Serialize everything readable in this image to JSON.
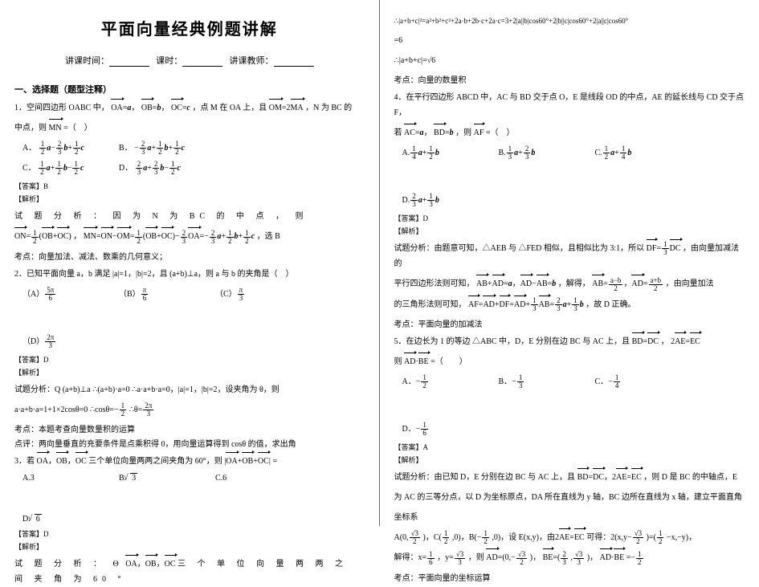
{
  "title": "平面向量经典例题讲解",
  "meta": {
    "t1": "讲课时间：",
    "t2": "课时：",
    "t3": "讲课教师："
  },
  "sec1": "一、选择题（题型注释）",
  "q1": {
    "stem1": "1．空间四边形 OABC 中，",
    "stem2": "，点 M 在 OA 上，且",
    "stem3": "，N 为 BC 的",
    "stem4": "中点，则",
    "stem5": "=（　）",
    "oa": "OA",
    "ob": "OB",
    "oc": "OC",
    "om": "OM",
    "ma": "MA",
    "mn": "MN",
    "optA": "A．",
    "optB": "B．",
    "optC": "C．",
    "optD": "D．",
    "ans": "【答案】B",
    "jx": "【解析】",
    "ana1": "试 题 分 析 ： 因 为 N 为 BC 的 中 点 ， 则",
    "ana2": "，",
    "ana3": "，选 B",
    "kd": "考点：向量加法、减法、数乘的几何意义；"
  },
  "q2": {
    "stem": "2．已知平面向量 a，b 满足 |a|=1，|b|=2，且 (a+b)⊥a，则 a 与 b 的夹角是（　）",
    "A": "（A）",
    "Av": "5π",
    "Ad": "6",
    "B": "（B）",
    "Bv": "π",
    "Bd": "6",
    "C": "（C）",
    "Cv": "π",
    "Cd": "3",
    "D": "（D）",
    "Dv": "2π",
    "Dd": "3",
    "ans": "【答案】D",
    "jx": "【解析】",
    "ana1": "试题分析：Q (a+b)⊥a ∴(a+b)·a=0 ∴a·a+b·a=0，|a|=1，|b|=2，设夹角为 θ，则",
    "ana2": "a·a+b·a=1+1×2cosθ=0 ∴cosθ=−",
    "ana3": "∴θ=",
    "kd": "考点：本题考查向量数量积的运算",
    "dp": "点评：两向量垂直的充要条件是点乘积得 0，用向量运算得到 cosθ 的值，求出角"
  },
  "q3": {
    "stem1": "3．若",
    "stem2": "三个单位向量两两之间夹角为 60°，则",
    "stem3": "=",
    "A": "A.3",
    "B": "B.",
    "Bv": "3",
    "C": "C.6",
    "D": "D.",
    "Dv": "6",
    "ans": "【答案】D",
    "jx": "【解析】",
    "ana": "试 题 分 析 ： Θ",
    "ana2": "三 个 单 位 向 量 两 两 之 间 夹 角 为 60 °"
  },
  "right": {
    "l1": "∴|a+b+c|²=a²+b²+c²+2a·b+2b·c+2a·c=3+2|a||b|cos60°+2|b||c|cos60°+2|a||c|cos60°",
    "l2": "=6",
    "l3": "∴|a+b+c|=√6",
    "kd": "考点：向量的数量积"
  },
  "q4": {
    "stem1": "4．在平行四边形 ABCD 中，AC 与 BD 交于点 O，E 是线段 OD 的中点，AE 的延长线与 CD 交于点 F，",
    "stem2": "若",
    "stem3": "，则",
    "stem4": "=（　）",
    "ac": "AC",
    "bd": "BD",
    "af": "AF",
    "A": "A.",
    "B": "B.",
    "C": "C.",
    "D": "D.",
    "ans": "【答案】D",
    "jx": "【解析】",
    "ana1": "试题分析：由题意可知，△AEB 与 △FED 相似，且相似比为 3:1，所以",
    "ana2": "，由向量加减法的",
    "ana3": "平行四边形法则可知，",
    "ana4": "，解得，",
    "ana5": "，由向量加法",
    "ana6": "的三角形法则可知，",
    "ana7": "，故 D 正确。",
    "kd": "考点：平面向量的加减法"
  },
  "q5": {
    "stem1": "5．在边长为 1 的等边 △ABC 中，D，E 分别在边 BC 与 AC 上，且",
    "stem2": "，",
    "stem3": "则",
    "stem4": "=（　　）",
    "bd": "BD",
    "dc": "DC",
    "ae": "AE",
    "ec": "EC",
    "ad": "AD",
    "be": "BE",
    "A": "A．−",
    "Av": "1",
    "Ad": "2",
    "B": "B．−",
    "Bv": "1",
    "Bd": "3",
    "C": "C．−",
    "Cv": "1",
    "Cd": "4",
    "D": "D．−",
    "Dv": "1",
    "Dd": "6",
    "ans": "【答案】A",
    "jx": "【解析】",
    "ana1": "试题分析：由已知 D，E 分别在边 BC 与 AC 上，且",
    "ana2": "，则 D 是 BC 的中轴点，E",
    "ana3": "为 AC 的三等分点，以 D 为坐标原点，DA 所在直线为 y 轴，BC 边所在直线为 x 轴，建立平面直角",
    "ana4": "坐标系",
    "p1": "A(0,",
    "p2": ")，C(",
    "p3": ",0)，B(−",
    "p4": ",0)，设 E(x,y)，由",
    "p5": "可得：2(x,y−",
    "p6": ")=(",
    "p7": "−x,−y)，",
    "s1": "解得：x=",
    "s2": "，y=",
    "s3": "，则",
    "s4": "=(0,−",
    "s5": ")，",
    "s6": "=(",
    "s7": ",",
    "s8": ")，",
    "s9": "·",
    "s10": "=−",
    "kd": "考点：平面向量的坐标运算"
  }
}
